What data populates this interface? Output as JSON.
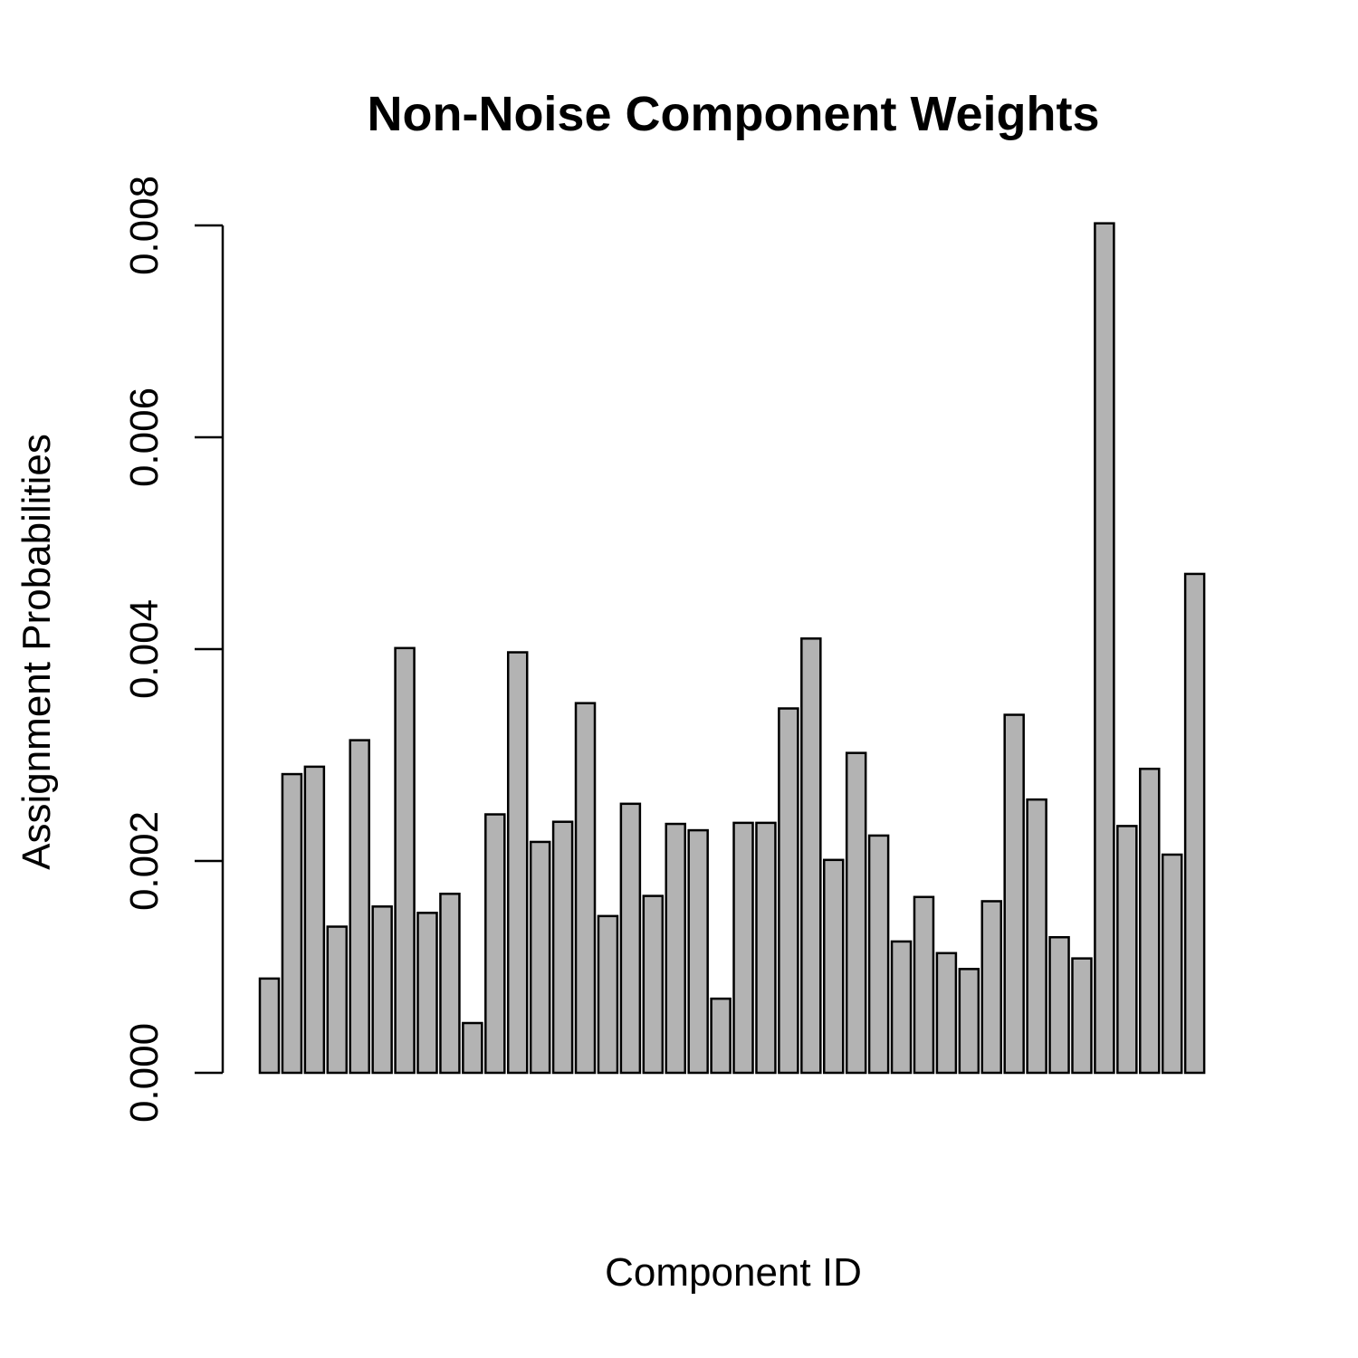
{
  "chart_data": {
    "type": "bar",
    "title": "Non-Noise Component Weights",
    "xlabel": "Component ID",
    "ylabel": "Assignment Probabilities",
    "ylim": [
      0,
      0.008
    ],
    "yticks": [
      "0.000",
      "0.002",
      "0.004",
      "0.006",
      "0.008"
    ],
    "ytick_values": [
      0,
      0.002,
      0.004,
      0.006,
      0.008
    ],
    "grid": false,
    "legend": "none",
    "bar_color": "#b3b3b3",
    "edge_color": "#000000",
    "values": [
      0.00089,
      0.00282,
      0.00289,
      0.00138,
      0.00314,
      0.00157,
      0.00401,
      0.00151,
      0.00169,
      0.00047,
      0.00244,
      0.00397,
      0.00218,
      0.00237,
      0.00349,
      0.00148,
      0.00254,
      0.00167,
      0.00235,
      0.00229,
      0.0007,
      0.00236,
      0.00236,
      0.00344,
      0.0041,
      0.00201,
      0.00302,
      0.00224,
      0.00124,
      0.00166,
      0.00113,
      0.00098,
      0.00162,
      0.00338,
      0.00258,
      0.00128,
      0.00108,
      0.00802,
      0.00233,
      0.00287,
      0.00206,
      0.00471
    ]
  }
}
